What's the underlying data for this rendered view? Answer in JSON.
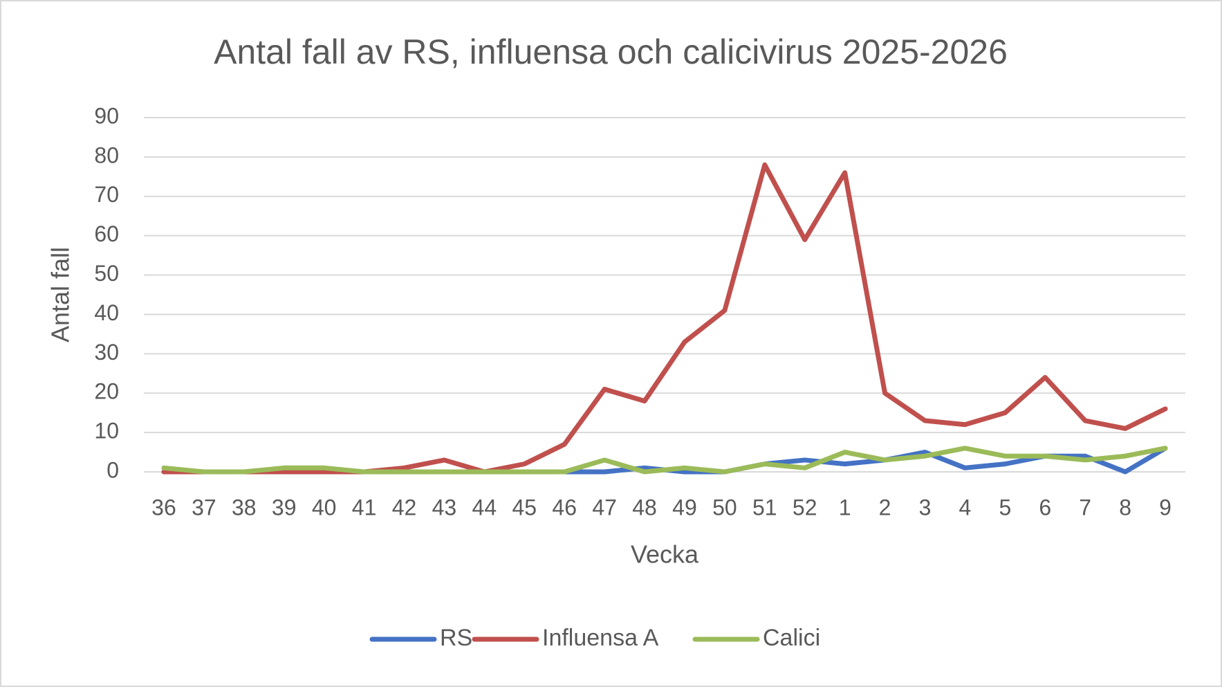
{
  "chart_data": {
    "type": "line",
    "title": "Antal fall av RS, influensa och calicivirus 2025-2026",
    "x_label": "Vecka",
    "y_label": "Antal fall",
    "categories": [
      "36",
      "37",
      "38",
      "39",
      "40",
      "41",
      "42",
      "43",
      "44",
      "45",
      "46",
      "47",
      "48",
      "49",
      "50",
      "51",
      "52",
      "1",
      "2",
      "3",
      "4",
      "5",
      "6",
      "7",
      "8",
      "9"
    ],
    "series": [
      {
        "name": "RS",
        "color": "#4472c4",
        "values": [
          0,
          0,
          0,
          0,
          0,
          0,
          0,
          0,
          0,
          0,
          0,
          0,
          1,
          0,
          0,
          2,
          3,
          2,
          3,
          5,
          1,
          2,
          4,
          4,
          0,
          6
        ]
      },
      {
        "name": "Influensa A",
        "color": "#c0504d",
        "values": [
          0,
          0,
          0,
          0,
          0,
          0,
          1,
          3,
          0,
          2,
          7,
          21,
          18,
          33,
          41,
          78,
          59,
          76,
          20,
          13,
          12,
          15,
          24,
          13,
          11,
          16
        ]
      },
      {
        "name": "Calici",
        "color": "#9bbb59",
        "values": [
          1,
          0,
          0,
          1,
          1,
          0,
          0,
          0,
          0,
          0,
          0,
          3,
          0,
          1,
          0,
          2,
          1,
          5,
          3,
          4,
          6,
          4,
          4,
          3,
          4,
          6
        ]
      }
    ],
    "ylim": [
      0,
      90
    ],
    "yticks": [
      0,
      10,
      20,
      30,
      40,
      50,
      60,
      70,
      80,
      90
    ],
    "grid": true,
    "legend": "bottom"
  }
}
